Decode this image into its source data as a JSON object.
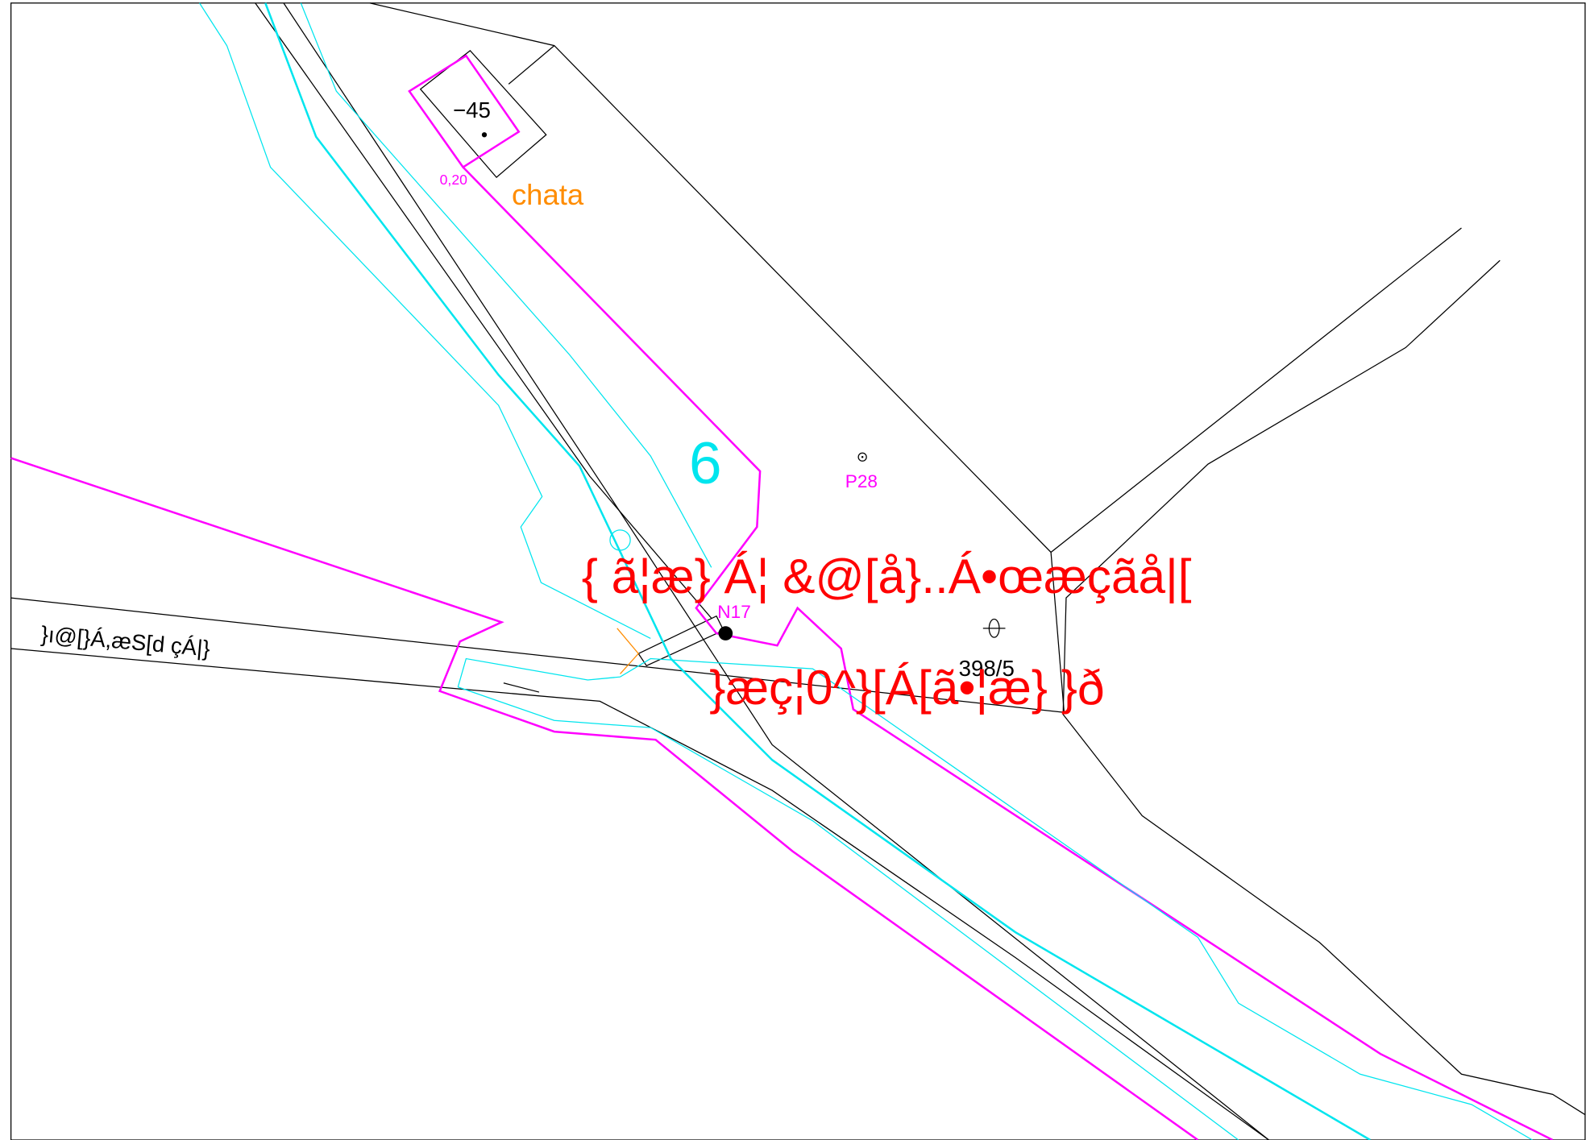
{
  "labels": {
    "height": "−45",
    "width": "0,20",
    "building": "chata",
    "parcel": "6",
    "point_p28": "P28",
    "point_n17": "N17",
    "parcel_398": "398/5",
    "red_line_1": "{ ã¦æ} Á¦ &@[å}..Á•œæçãå|[",
    "red_line_2": "}æç¦0^}[Á[ã•¦æ} }ð",
    "road": "}ı@[}Á,æS[d çÁ|}"
  }
}
